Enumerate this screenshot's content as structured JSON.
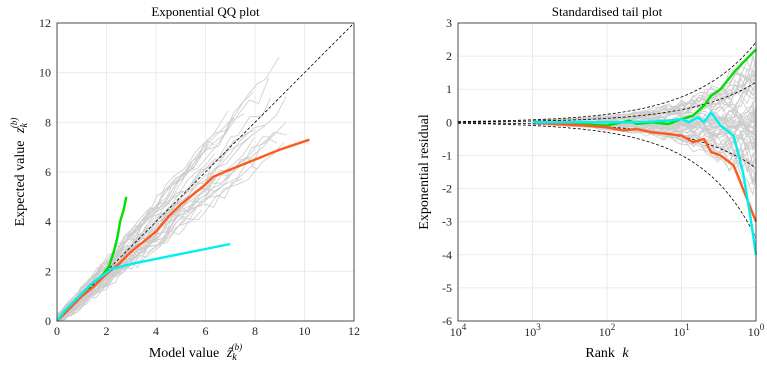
{
  "chart_data": [
    {
      "type": "line",
      "title": "Exponential QQ plot",
      "xlabel_text": "Model value",
      "xlabel_symbol": "ẑ",
      "xlabel_sub": "k",
      "xlabel_sup": "(b)",
      "ylabel_text": "Expected value",
      "ylabel_symbol": "z",
      "ylabel_sub": "k",
      "ylabel_sup": "(b)",
      "xlim": [
        0,
        12
      ],
      "ylim": [
        0,
        12
      ],
      "xticks": [
        "0",
        "2",
        "4",
        "6",
        "8",
        "10",
        "12"
      ],
      "yticks": [
        "0",
        "2",
        "4",
        "6",
        "8",
        "10",
        "12"
      ],
      "grid": true,
      "reference_line": {
        "style": "dashed",
        "color": "#000000",
        "points": [
          [
            0,
            0
          ],
          [
            12,
            12
          ]
        ]
      },
      "background_series_color": "#cccccc",
      "series": [
        {
          "color": "#00e000",
          "points": [
            [
              0,
              0
            ],
            [
              0.3,
              0.3
            ],
            [
              0.6,
              0.6
            ],
            [
              1.0,
              1.1
            ],
            [
              1.4,
              1.5
            ],
            [
              1.8,
              1.8
            ],
            [
              2.1,
              2.2
            ],
            [
              2.3,
              2.8
            ],
            [
              2.45,
              3.4
            ],
            [
              2.55,
              4.0
            ],
            [
              2.7,
              4.5
            ],
            [
              2.8,
              5.0
            ]
          ]
        },
        {
          "color": "#ff5a1e",
          "points": [
            [
              0,
              0
            ],
            [
              0.5,
              0.5
            ],
            [
              1.0,
              1.0
            ],
            [
              1.5,
              1.4
            ],
            [
              2.0,
              1.9
            ],
            [
              2.5,
              2.3
            ],
            [
              3.0,
              2.8
            ],
            [
              3.5,
              3.2
            ],
            [
              4.0,
              3.6
            ],
            [
              4.5,
              4.2
            ],
            [
              5.0,
              4.7
            ],
            [
              5.5,
              5.1
            ],
            [
              6.0,
              5.5
            ],
            [
              6.3,
              5.8
            ],
            [
              7.0,
              6.1
            ],
            [
              8.0,
              6.5
            ],
            [
              9.0,
              6.9
            ],
            [
              10.2,
              7.3
            ]
          ]
        },
        {
          "color": "#00f0f0",
          "points": [
            [
              0,
              0
            ],
            [
              0.3,
              0.4
            ],
            [
              0.6,
              0.7
            ],
            [
              1.0,
              1.1
            ],
            [
              1.4,
              1.5
            ],
            [
              1.8,
              1.8
            ],
            [
              2.2,
              2.1
            ],
            [
              3.0,
              2.3
            ],
            [
              4.0,
              2.5
            ],
            [
              5.0,
              2.7
            ],
            [
              6.0,
              2.9
            ],
            [
              7.0,
              3.1
            ]
          ]
        }
      ]
    },
    {
      "type": "line",
      "title": "Standardised tail plot",
      "xlabel_text": "Rank",
      "xlabel_symbol": "k",
      "ylabel": "Exponential residual",
      "xscale": "log",
      "xaxis_reversed": true,
      "xlim": [
        10000,
        1
      ],
      "ylim": [
        -6,
        3
      ],
      "xticks": [
        {
          "base": "10",
          "exp": "4"
        },
        {
          "base": "10",
          "exp": "3"
        },
        {
          "base": "10",
          "exp": "2"
        },
        {
          "base": "10",
          "exp": "1"
        },
        {
          "base": "10",
          "exp": "0"
        }
      ],
      "yticks": [
        "-6",
        "-5",
        "-4",
        "-3",
        "-2",
        "-1",
        "0",
        "1",
        "2",
        "3"
      ],
      "grid": true,
      "envelope_style": "dashed",
      "background_series_color": "#cccccc",
      "series": [
        {
          "color": "#00e000",
          "points": [
            [
              1000,
              0
            ],
            [
              300,
              -0.05
            ],
            [
              100,
              -0.1
            ],
            [
              50,
              0.05
            ],
            [
              40,
              -0.05
            ],
            [
              25,
              0.0
            ],
            [
              15,
              -0.05
            ],
            [
              10,
              0.1
            ],
            [
              7,
              0.2
            ],
            [
              5,
              0.5
            ],
            [
              4,
              0.8
            ],
            [
              3,
              1.0
            ],
            [
              2,
              1.5
            ],
            [
              1.5,
              1.8
            ],
            [
              1,
              2.2
            ]
          ]
        },
        {
          "color": "#ff5a1e",
          "points": [
            [
              1000,
              0
            ],
            [
              500,
              -0.05
            ],
            [
              200,
              -0.1
            ],
            [
              100,
              -0.15
            ],
            [
              60,
              -0.25
            ],
            [
              40,
              -0.2
            ],
            [
              25,
              -0.3
            ],
            [
              15,
              -0.35
            ],
            [
              10,
              -0.4
            ],
            [
              7,
              -0.6
            ],
            [
              5,
              -0.5
            ],
            [
              4,
              -0.9
            ],
            [
              3,
              -1.0
            ],
            [
              2,
              -1.3
            ],
            [
              1.5,
              -2.0
            ],
            [
              1,
              -3.0
            ]
          ]
        },
        {
          "color": "#00f0f0",
          "points": [
            [
              1000,
              0
            ],
            [
              300,
              0
            ],
            [
              100,
              0.0
            ],
            [
              40,
              0.0
            ],
            [
              15,
              0.05
            ],
            [
              10,
              0.1
            ],
            [
              8,
              0.0
            ],
            [
              6,
              0.15
            ],
            [
              5,
              0.0
            ],
            [
              4,
              0.3
            ],
            [
              3,
              -0.1
            ],
            [
              2,
              -0.4
            ],
            [
              1.5,
              -1.5
            ],
            [
              1.2,
              -2.8
            ],
            [
              1,
              -4.0
            ]
          ]
        }
      ]
    }
  ]
}
